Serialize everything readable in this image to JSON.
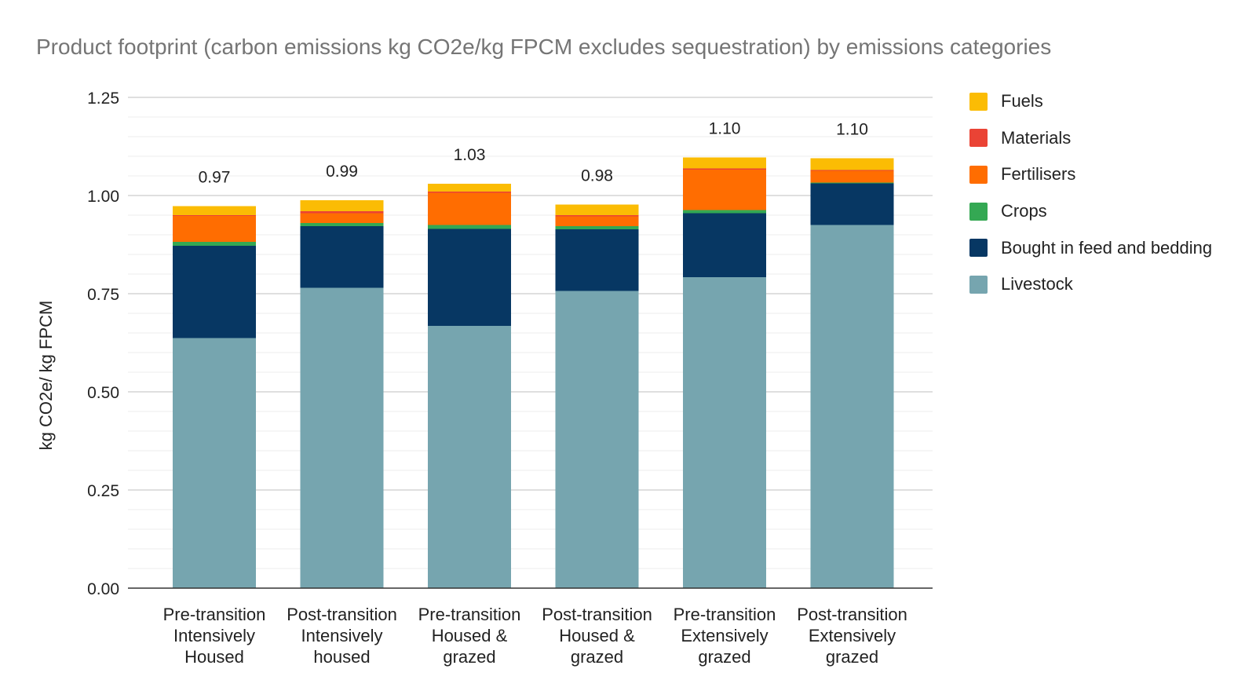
{
  "chart_data": {
    "type": "bar",
    "stacked": true,
    "title": "Product footprint (carbon emissions kg CO2e/kg FPCM excludes sequestration) by emissions categories",
    "xlabel": "",
    "ylabel": "kg CO2e/ kg FPCM",
    "ylim": [
      0,
      1.25
    ],
    "yticks": [
      "0.00",
      "0.25",
      "0.50",
      "0.75",
      "1.00",
      "1.25"
    ],
    "categories": [
      [
        "Pre-transition",
        "Intensively",
        "Housed"
      ],
      [
        "Post-transition",
        "Intensively",
        "housed"
      ],
      [
        "Pre-transition",
        "Housed &",
        "grazed"
      ],
      [
        "Post-transition",
        "Housed &",
        "grazed"
      ],
      [
        "Pre-transition",
        "Extensively",
        "grazed"
      ],
      [
        "Post-transition",
        "Extensively",
        "grazed"
      ]
    ],
    "totals": [
      "0.97",
      "0.99",
      "1.03",
      "0.98",
      "1.10",
      "1.10"
    ],
    "series": [
      {
        "name": "Livestock",
        "color": "#76a5af",
        "values": [
          0.637,
          0.765,
          0.668,
          0.757,
          0.792,
          0.925
        ]
      },
      {
        "name": "Bought in feed and bedding",
        "color": "#073763",
        "values": [
          0.235,
          0.157,
          0.247,
          0.157,
          0.163,
          0.106
        ]
      },
      {
        "name": "Crops",
        "color": "#34a853",
        "values": [
          0.01,
          0.008,
          0.01,
          0.008,
          0.008,
          0.002
        ]
      },
      {
        "name": "Fertilisers",
        "color": "#ff6d01",
        "values": [
          0.066,
          0.025,
          0.082,
          0.025,
          0.103,
          0.03
        ]
      },
      {
        "name": "Materials",
        "color": "#ea4335",
        "values": [
          0.002,
          0.005,
          0.003,
          0.003,
          0.003,
          0.002
        ]
      },
      {
        "name": "Fuels",
        "color": "#fbbc04",
        "values": [
          0.023,
          0.028,
          0.02,
          0.027,
          0.028,
          0.03
        ]
      }
    ],
    "legend": [
      "Fuels",
      "Materials",
      "Fertilisers",
      "Crops",
      "Bought in feed and bedding",
      "Livestock"
    ],
    "legend_position": "right",
    "grid": true
  }
}
